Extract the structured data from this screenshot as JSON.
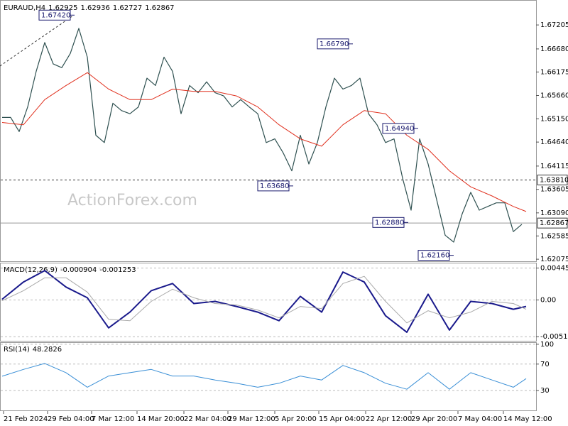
{
  "chart_data": [
    {
      "type": "line",
      "title": "EURAUD,H4",
      "ohlc": [
        1.62925,
        1.62936,
        1.62727,
        1.62867
      ],
      "watermark": "ActionForex.com",
      "xlim": [
        0,
        376
      ],
      "ylim": [
        1.6203,
        1.6772
      ],
      "grid": false,
      "xticks": [
        {
          "value": 1,
          "label": "21 Feb 2024"
        },
        {
          "value": 32,
          "label": "29 Feb 04:00"
        },
        {
          "value": 63,
          "label": "7 Mar 12:00"
        },
        {
          "value": 95,
          "label": "14 Mar 20:00"
        },
        {
          "value": 128,
          "label": "22 Mar 04:00"
        },
        {
          "value": 159,
          "label": "29 Mar 12:00"
        },
        {
          "value": 192,
          "label": "5 Apr 20:00"
        },
        {
          "value": 223,
          "label": "15 Apr 04:00"
        },
        {
          "value": 256,
          "label": "22 Apr 12:00"
        },
        {
          "value": 288,
          "label": "29 Apr 20:00"
        },
        {
          "value": 321,
          "label": "7 May 04:00"
        },
        {
          "value": 353,
          "label": "14 May 12:00"
        }
      ],
      "yticks": [
        1.67205,
        {
          "value": 1.6668,
          "label": "1.66680"
        },
        1.66175,
        {
          "value": 1.6566,
          "label": "1.65660"
        },
        {
          "value": 1.6515,
          "label": "1.65150"
        },
        {
          "value": 1.6464,
          "label": "1.64640"
        },
        1.64115,
        1.63605,
        {
          "value": 1.6309,
          "label": "1.63090"
        },
        1.62585,
        1.62075
      ],
      "series": [
        {
          "name": "EURAUD",
          "color": "#2e5050",
          "width": 1.2,
          "x": [
            0,
            6,
            12,
            18,
            24,
            30,
            36,
            42,
            48,
            54,
            60,
            66,
            72,
            78,
            84,
            90,
            96,
            102,
            108,
            114,
            120,
            126,
            132,
            138,
            144,
            150,
            156,
            162,
            168,
            174,
            180,
            186,
            192,
            198,
            204,
            210,
            216,
            222,
            228,
            234,
            240,
            246,
            252,
            258,
            264,
            270,
            276,
            282,
            288,
            294,
            300,
            306,
            312,
            318,
            324,
            330,
            336,
            342,
            348,
            354,
            360,
            366
          ],
          "values": [
            1.6518,
            1.6518,
            1.6487,
            1.6541,
            1.6619,
            1.6682,
            1.6635,
            1.6627,
            1.6658,
            1.6713,
            1.665,
            1.6479,
            1.6463,
            1.6549,
            1.6533,
            1.6526,
            1.6541,
            1.6604,
            1.6588,
            1.665,
            1.6619,
            1.6526,
            1.6588,
            1.6572,
            1.6596,
            1.6572,
            1.6565,
            1.6541,
            1.6557,
            1.6541,
            1.6526,
            1.6463,
            1.6471,
            1.644,
            1.6401,
            1.6479,
            1.6416,
            1.6463,
            1.6541,
            1.6604,
            1.658,
            1.6588,
            1.6604,
            1.6526,
            1.6502,
            1.6463,
            1.6471,
            1.6385,
            1.6315,
            1.6471,
            1.6416,
            1.6338,
            1.626,
            1.6245,
            1.6307,
            1.6354,
            1.6315,
            1.6323,
            1.6331,
            1.6331,
            1.6268,
            1.6284
          ]
        },
        {
          "name": "MA",
          "color": "#e0301e",
          "width": 1,
          "x": [
            0,
            15,
            30,
            45,
            60,
            75,
            90,
            105,
            120,
            135,
            150,
            165,
            180,
            195,
            210,
            225,
            240,
            255,
            270,
            285,
            300,
            315,
            330,
            345,
            360,
            369
          ],
          "values": [
            1.6507,
            1.6502,
            1.6557,
            1.6588,
            1.6616,
            1.658,
            1.6557,
            1.6557,
            1.658,
            1.6575,
            1.6575,
            1.6565,
            1.6541,
            1.6502,
            1.6471,
            1.6455,
            1.6502,
            1.6533,
            1.6526,
            1.6479,
            1.6448,
            1.6401,
            1.6366,
            1.6346,
            1.6323,
            1.6312
          ]
        }
      ],
      "annotations": [
        {
          "x": 51,
          "value": 1.6742,
          "label": "1.67420"
        },
        {
          "x": 247,
          "value": 1.6679,
          "label": "1.66790"
        },
        {
          "x": 293,
          "value": 1.6494,
          "label": "1.64940"
        },
        {
          "x": 205,
          "value": 1.6368,
          "label": "1.63680"
        },
        {
          "x": 286,
          "value": 1.6288,
          "label": "1.62880"
        },
        {
          "x": 318,
          "value": 1.6216,
          "label": "1.62160"
        }
      ],
      "hlines": [
        {
          "value": 1.6381,
          "label": "1.63810",
          "dashed": true
        },
        {
          "value": 1.62867,
          "dashed": false
        }
      ]
    },
    {
      "type": "line",
      "title": "MACD(12,26,9)",
      "current": [
        -0.000904,
        -0.001253
      ],
      "ylim": [
        -0.0057,
        0.0051
      ],
      "yticks": [
        0.004456,
        {
          "value": 0,
          "label": "0.00"
        },
        -0.005128
      ],
      "grid": true,
      "series": [
        {
          "name": "MACD",
          "color": "#1a1a8c",
          "width": 2,
          "x": [
            0,
            15,
            30,
            45,
            60,
            75,
            90,
            105,
            120,
            135,
            150,
            165,
            180,
            195,
            210,
            225,
            240,
            255,
            270,
            285,
            300,
            315,
            330,
            345,
            360,
            369
          ],
          "values": [
            0.0001,
            0.0025,
            0.0041,
            0.0018,
            0.0003,
            -0.0039,
            -0.0017,
            0.0013,
            0.0023,
            -0.0005,
            -0.0002,
            -0.0009,
            -0.0017,
            -0.0029,
            0.0005,
            -0.0017,
            0.0039,
            0.0025,
            -0.0022,
            -0.0045,
            0.0008,
            -0.0042,
            -0.0002,
            -0.0005,
            -0.0013,
            -0.0009
          ]
        },
        {
          "name": "Signal",
          "color": "#aaaaaa",
          "width": 1,
          "x": [
            0,
            15,
            30,
            45,
            60,
            75,
            90,
            105,
            120,
            135,
            150,
            165,
            180,
            195,
            210,
            225,
            240,
            255,
            270,
            285,
            300,
            315,
            330,
            345,
            360,
            369
          ],
          "values": [
            -0.0001,
            0.0013,
            0.0031,
            0.0031,
            0.0011,
            -0.0027,
            -0.0029,
            -0.0002,
            0.0015,
            0.0003,
            -0.0005,
            -0.0007,
            -0.0014,
            -0.0025,
            -0.0009,
            -0.0012,
            0.0023,
            0.0033,
            -0.0002,
            -0.0032,
            -0.0015,
            -0.0025,
            -0.0017,
            -0.0002,
            -0.0005,
            -0.0013
          ]
        }
      ]
    },
    {
      "type": "line",
      "title": "RSI(14)",
      "current": [
        48.2826
      ],
      "ylim": [
        0,
        102
      ],
      "yticks": [
        100,
        70,
        30
      ],
      "grid": true,
      "series": [
        {
          "name": "RSI",
          "color": "#3a8fd6",
          "width": 1,
          "x": [
            0,
            15,
            30,
            45,
            60,
            75,
            90,
            105,
            120,
            135,
            150,
            165,
            180,
            195,
            210,
            225,
            240,
            255,
            270,
            285,
            300,
            315,
            330,
            345,
            360,
            369
          ],
          "values": [
            51.6,
            62,
            71,
            57,
            35,
            52,
            57,
            62,
            52,
            52,
            46,
            41,
            35,
            41,
            52,
            46,
            68,
            57,
            41,
            32,
            57,
            32,
            57,
            46,
            35,
            48
          ]
        }
      ]
    }
  ]
}
